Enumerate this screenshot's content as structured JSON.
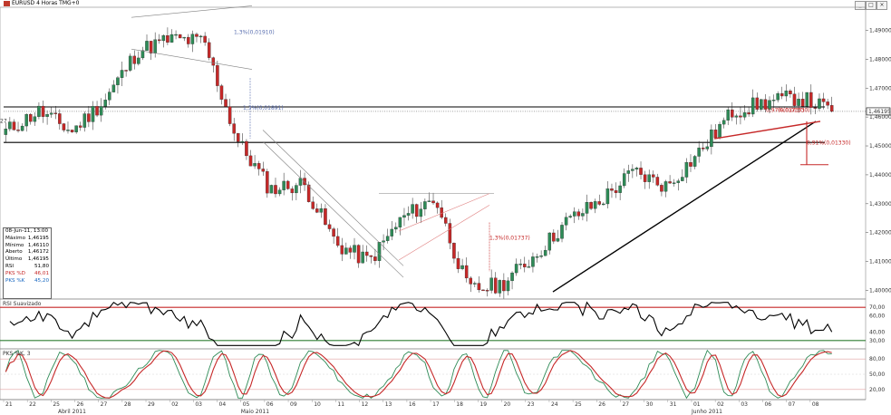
{
  "window": {
    "title": "EURUSD 4 Horas TMG+0",
    "controls": [
      "_",
      "□",
      "×"
    ]
  },
  "info_box": {
    "datetime": "08-Jun-11, 13:00",
    "rows": [
      {
        "label": "Máximo",
        "value": "1,46195"
      },
      {
        "label": "Mínimo",
        "value": "1,46110"
      },
      {
        "label": "Aberto",
        "value": "1,46172"
      },
      {
        "label": "Último",
        "value": "1,46195"
      },
      {
        "label": "RSI",
        "value": "51,80"
      },
      {
        "label": "PKS %D",
        "value": "46,01"
      },
      {
        "label": "PKS %K",
        "value": "45,20"
      }
    ]
  },
  "colors": {
    "bull": "#2e8b57",
    "bear": "#c62828",
    "trendline": "#000000",
    "channel": "#808080",
    "rsi_upper": "#c62828",
    "rsi_lower": "#2e7d32",
    "stoch_k": "#2e8b57",
    "stoch_d": "#c62828",
    "annotation": "#c62828",
    "annotation_blue": "#5a6fb0"
  },
  "panels": {
    "rsi_title": "RSI Suavizado",
    "stoch_title": "PKS %K, 3"
  },
  "chart_data": [
    {
      "type": "candlestick",
      "title": "EURUSD 4 Horas TMG+0",
      "ylim": [
        1.397,
        1.498
      ],
      "y_ticks": [
        "1,49000",
        "1,48000",
        "1,47000",
        "1,46000",
        "1,45000",
        "1,44000",
        "1,43000",
        "1,42000",
        "1,41000",
        "1,40000"
      ],
      "y_tick_values": [
        1.49,
        1.48,
        1.47,
        1.46,
        1.45,
        1.44,
        1.43,
        1.42,
        1.41,
        1.4
      ],
      "last_price_label": "1,46195",
      "last_price": 1.46195,
      "left_edge_label": "27",
      "horizontal_levels": [
        1.4635,
        1.4512
      ],
      "date_labels": [
        "21",
        "22",
        "25",
        "26",
        "27",
        "28",
        "29",
        "02",
        "03",
        "04",
        "05",
        "06",
        "09",
        "10",
        "11",
        "12",
        "13",
        "16",
        "17",
        "18",
        "19",
        "20",
        "23",
        "24",
        "25",
        "26",
        "27",
        "30",
        "31",
        "01",
        "02",
        "03",
        "06",
        "07",
        "08"
      ],
      "month_labels": [
        "Abril 2011",
        "Maio 2011",
        "Junho 2011"
      ],
      "annotations": [
        {
          "text": "1,3%(0,01910)",
          "color": "blue"
        },
        {
          "text": "1,3%(0,01891)",
          "color": "blue"
        },
        {
          "text": "1,3%(0,01737)",
          "color": "red"
        },
        {
          "text": "0,91%(0,01330)",
          "color": "red"
        },
        {
          "text": "0,97%(0,01330)",
          "color": "red"
        },
        {
          "text": "(0,01737)",
          "color": "red"
        }
      ],
      "key_points": [
        {
          "x": "21 Apr",
          "y": 1.455
        },
        {
          "x": "22 Apr",
          "y": 1.462
        },
        {
          "x": "27 Apr",
          "y": 1.455
        },
        {
          "x": "29 Apr",
          "y": 1.466
        },
        {
          "x": "02 May",
          "y": 1.483
        },
        {
          "x": "04 May",
          "y": 1.487
        },
        {
          "x": "05 May",
          "y": 1.486
        },
        {
          "x": "06 May",
          "y": 1.452
        },
        {
          "x": "09 May",
          "y": 1.435
        },
        {
          "x": "11 May",
          "y": 1.437
        },
        {
          "x": "13 May",
          "y": 1.416
        },
        {
          "x": "16 May",
          "y": 1.41
        },
        {
          "x": "18 May",
          "y": 1.425
        },
        {
          "x": "20 May",
          "y": 1.432
        },
        {
          "x": "23 May",
          "y": 1.4
        },
        {
          "x": "24 May",
          "y": 1.402
        },
        {
          "x": "26 May",
          "y": 1.412
        },
        {
          "x": "27 May",
          "y": 1.424
        },
        {
          "x": "30 May",
          "y": 1.431
        },
        {
          "x": "31 May",
          "y": 1.441
        },
        {
          "x": "01 Jun",
          "y": 1.436
        },
        {
          "x": "02 Jun",
          "y": 1.448
        },
        {
          "x": "03 Jun",
          "y": 1.462
        },
        {
          "x": "06 Jun",
          "y": 1.465
        },
        {
          "x": "07 Jun",
          "y": 1.467
        },
        {
          "x": "08 Jun",
          "y": 1.46195
        }
      ]
    },
    {
      "type": "line",
      "title": "RSI Suavizado",
      "ylim": [
        20,
        80
      ],
      "y_ticks": [
        "70,00",
        "60,00",
        "40,00",
        "30,00"
      ],
      "y_tick_values": [
        70,
        60,
        40,
        30
      ],
      "levels": [
        70,
        30
      ]
    },
    {
      "type": "line",
      "title": "PKS %K, 3",
      "ylim": [
        0,
        100
      ],
      "y_ticks": [
        "80,00",
        "50,00",
        "20,00"
      ],
      "y_tick_values": [
        80,
        50,
        20
      ],
      "levels": [
        80,
        20
      ],
      "series": [
        {
          "name": "PKS %K"
        },
        {
          "name": "PKS %D"
        }
      ]
    }
  ]
}
